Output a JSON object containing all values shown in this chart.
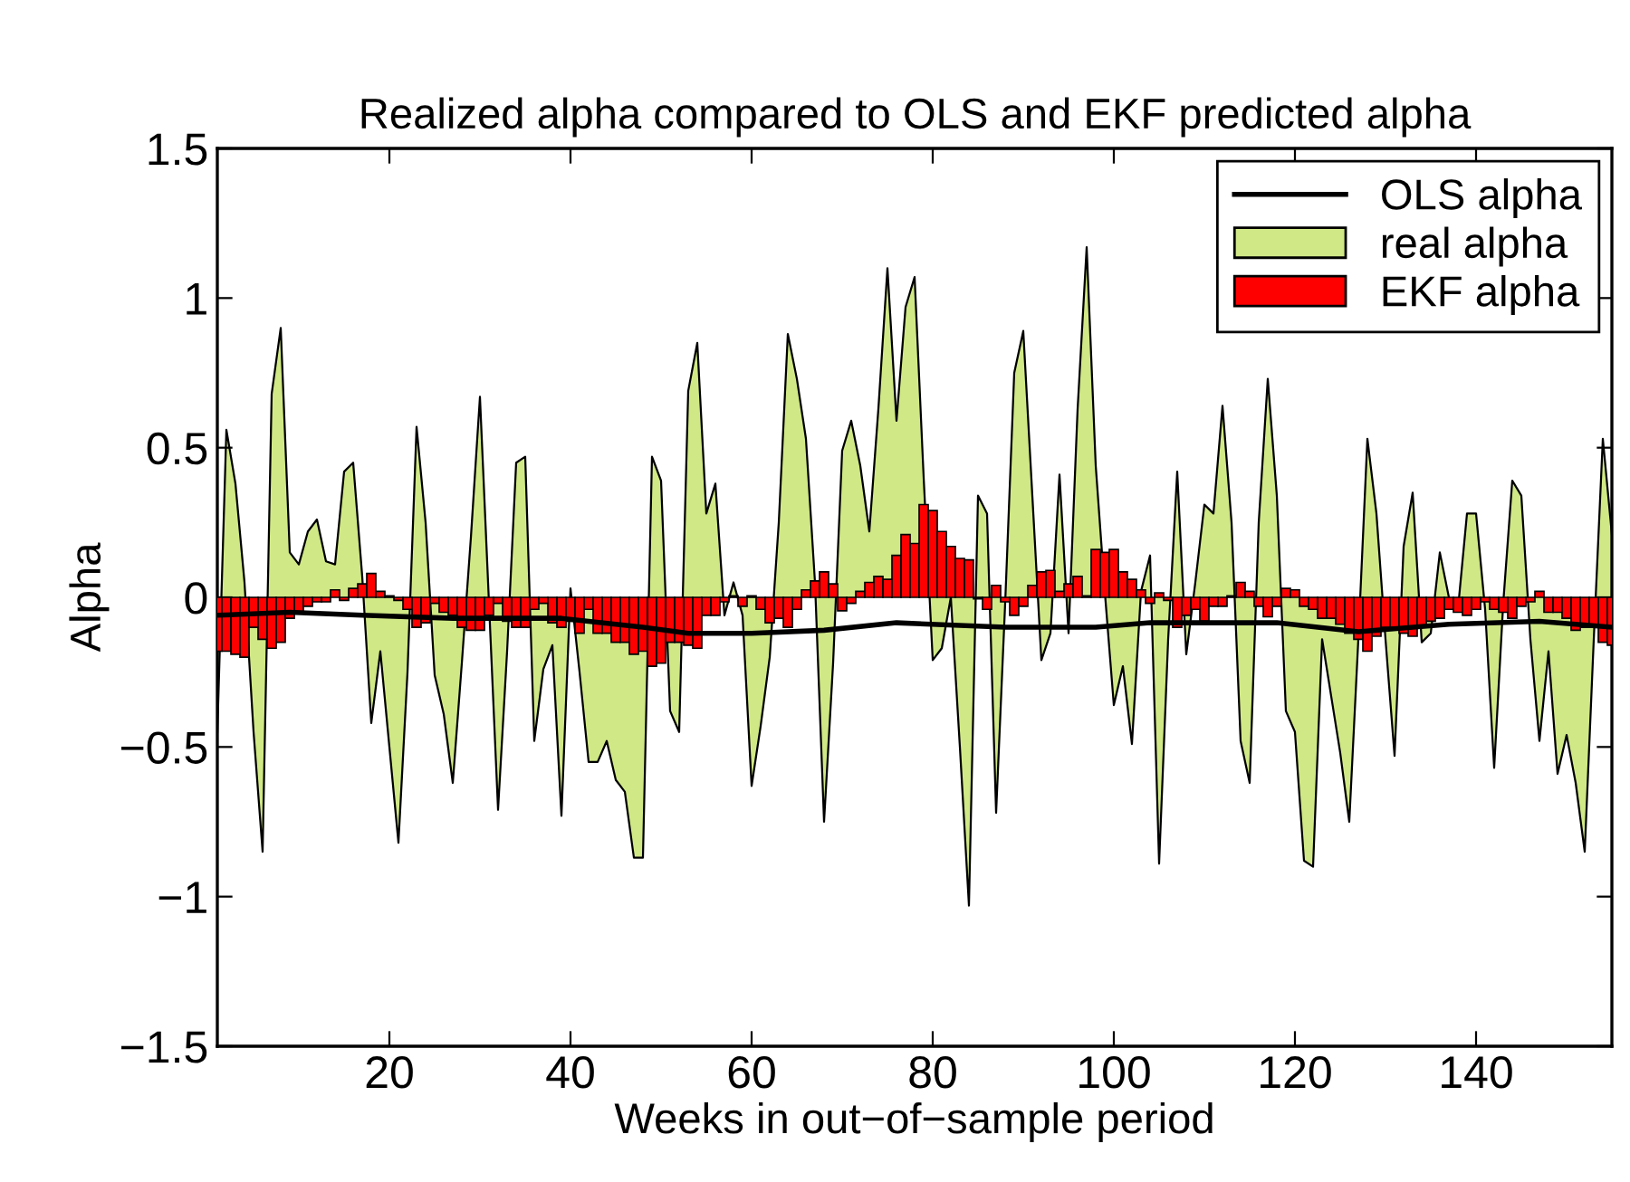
{
  "chart_data": {
    "type": "bar",
    "title": "Realized alpha compared to OLS and EKF predicted alpha",
    "xlabel": "Weeks in out−of−sample period",
    "ylabel": "Alpha",
    "x": [
      1,
      2,
      3,
      4,
      5,
      6,
      7,
      8,
      9,
      10,
      11,
      12,
      13,
      14,
      15,
      16,
      17,
      18,
      19,
      20,
      21,
      22,
      23,
      24,
      25,
      26,
      27,
      28,
      29,
      30,
      31,
      32,
      33,
      34,
      35,
      36,
      37,
      38,
      39,
      40,
      41,
      42,
      43,
      44,
      45,
      46,
      47,
      48,
      49,
      50,
      51,
      52,
      53,
      54,
      55,
      56,
      57,
      58,
      59,
      60,
      61,
      62,
      63,
      64,
      65,
      66,
      67,
      68,
      69,
      70,
      71,
      72,
      73,
      74,
      75,
      76,
      77,
      78,
      79,
      80,
      81,
      82,
      83,
      84,
      85,
      86,
      87,
      88,
      89,
      90,
      91,
      92,
      93,
      94,
      95,
      96,
      97,
      98,
      99,
      100,
      101,
      102,
      103,
      104,
      105,
      106,
      107,
      108,
      109,
      110,
      111,
      112,
      113,
      114,
      115,
      116,
      117,
      118,
      119,
      120,
      121,
      122,
      123,
      124,
      125,
      126,
      127,
      128,
      129,
      130,
      131,
      132,
      133,
      134,
      135,
      136,
      137,
      138,
      139,
      140,
      141,
      142,
      143,
      144,
      145,
      146,
      147,
      148,
      149,
      150,
      151,
      152,
      153,
      154,
      155
    ],
    "series": [
      {
        "name": "OLS alpha",
        "type": "line",
        "color": "#000000",
        "x": [
          1,
          9,
          17,
          27,
          39,
          48,
          53,
          60,
          68,
          76,
          88,
          98,
          104,
          118,
          127,
          137,
          147,
          155
        ],
        "values": [
          -0.06,
          -0.05,
          -0.06,
          -0.07,
          -0.07,
          -0.1,
          -0.12,
          -0.12,
          -0.11,
          -0.085,
          -0.1,
          -0.1,
          -0.085,
          -0.085,
          -0.115,
          -0.09,
          -0.08,
          -0.1
        ]
      },
      {
        "name": "real alpha",
        "type": "area",
        "color": "#d0e886",
        "values": [
          -0.45,
          0.56,
          0.38,
          0.05,
          -0.45,
          -0.85,
          0.68,
          0.9,
          0.15,
          0.11,
          0.22,
          0.26,
          0.12,
          0.11,
          0.42,
          0.45,
          0.07,
          -0.42,
          -0.18,
          -0.5,
          -0.82,
          -0.25,
          0.57,
          0.25,
          -0.26,
          -0.39,
          -0.62,
          -0.22,
          0.2,
          0.67,
          -0.02,
          -0.71,
          -0.18,
          0.45,
          0.47,
          -0.48,
          -0.24,
          -0.16,
          -0.73,
          0.03,
          -0.25,
          -0.55,
          -0.55,
          -0.48,
          -0.61,
          -0.65,
          -0.87,
          -0.87,
          0.47,
          0.39,
          -0.38,
          -0.45,
          0.69,
          0.85,
          0.28,
          0.38,
          -0.06,
          0.05,
          -0.06,
          -0.63,
          -0.43,
          -0.2,
          0.25,
          0.88,
          0.73,
          0.53,
          0.05,
          -0.75,
          -0.22,
          0.49,
          0.59,
          0.44,
          0.22,
          0.63,
          1.1,
          0.59,
          0.97,
          1.07,
          0.4,
          -0.21,
          -0.17,
          0.0,
          -0.5,
          -1.03,
          0.34,
          0.28,
          -0.72,
          -0.02,
          0.75,
          0.89,
          0.34,
          -0.21,
          -0.12,
          0.41,
          -0.12,
          0.63,
          1.17,
          0.44,
          0.02,
          -0.36,
          -0.23,
          -0.49,
          0.02,
          0.14,
          -0.89,
          -0.14,
          0.42,
          -0.19,
          0.05,
          0.31,
          0.28,
          0.64,
          0.25,
          -0.48,
          -0.62,
          0.25,
          0.73,
          0.34,
          -0.38,
          -0.45,
          -0.88,
          -0.9,
          -0.14,
          -0.33,
          -0.52,
          -0.75,
          -0.14,
          0.53,
          0.28,
          -0.14,
          -0.53,
          0.17,
          0.35,
          -0.15,
          -0.12,
          0.15,
          0.0,
          -0.04,
          0.28,
          0.28,
          -0.04,
          -0.57,
          -0.02,
          0.39,
          0.34,
          -0.14,
          -0.48,
          -0.18,
          -0.59,
          -0.46,
          -0.62,
          -0.85,
          -0.14,
          0.53,
          0.21
        ]
      },
      {
        "name": "EKF alpha",
        "color": "#ff0000",
        "values": [
          -0.18,
          -0.18,
          -0.19,
          -0.2,
          -0.1,
          -0.14,
          -0.17,
          -0.15,
          -0.07,
          -0.05,
          -0.03,
          -0.015,
          -0.015,
          0.025,
          -0.01,
          0.03,
          0.045,
          0.08,
          0.02,
          0.005,
          -0.01,
          -0.04,
          -0.1,
          -0.085,
          -0.02,
          -0.05,
          -0.06,
          -0.1,
          -0.11,
          -0.11,
          -0.06,
          -0.02,
          -0.08,
          -0.1,
          -0.1,
          -0.04,
          -0.02,
          -0.085,
          -0.1,
          -0.08,
          -0.12,
          -0.04,
          -0.12,
          -0.12,
          -0.15,
          -0.15,
          -0.19,
          -0.18,
          -0.23,
          -0.22,
          -0.15,
          -0.15,
          -0.16,
          -0.17,
          -0.06,
          -0.06,
          -0.015,
          0.005,
          -0.03,
          0.005,
          -0.04,
          -0.085,
          -0.07,
          -0.1,
          -0.04,
          0.025,
          0.055,
          0.085,
          0.045,
          -0.045,
          -0.02,
          0.02,
          0.05,
          0.07,
          0.06,
          0.14,
          0.21,
          0.18,
          0.31,
          0.29,
          0.22,
          0.17,
          0.13,
          0.125,
          -0.005,
          -0.04,
          0.04,
          -0.015,
          -0.06,
          -0.03,
          0.04,
          0.085,
          0.09,
          0.02,
          0.045,
          0.07,
          0.005,
          0.16,
          0.15,
          0.16,
          0.085,
          0.06,
          0.025,
          -0.02,
          0.015,
          -0.01,
          -0.1,
          -0.06,
          -0.04,
          -0.08,
          -0.03,
          -0.03,
          0.005,
          0.05,
          0.02,
          -0.03,
          -0.065,
          -0.03,
          0.03,
          0.025,
          -0.03,
          -0.04,
          -0.07,
          -0.07,
          -0.09,
          -0.12,
          -0.14,
          -0.18,
          -0.13,
          -0.1,
          -0.1,
          -0.12,
          -0.13,
          -0.1,
          -0.08,
          -0.07,
          -0.04,
          -0.05,
          -0.06,
          -0.04,
          -0.015,
          -0.04,
          -0.05,
          -0.07,
          -0.03,
          -0.015,
          0.02,
          -0.05,
          -0.05,
          -0.07,
          -0.11,
          -0.1,
          -0.1,
          -0.15,
          -0.16
        ]
      }
    ],
    "xlim": [
      1,
      155
    ],
    "xticks": [
      20,
      40,
      60,
      80,
      100,
      120,
      140
    ],
    "ylim": [
      -1.5,
      1.5
    ],
    "yticks": [
      {
        "value": -1.5,
        "label": "−1.5"
      },
      {
        "value": -1,
        "label": "−1"
      },
      {
        "value": -0.5,
        "label": "−0.5"
      },
      0,
      0.5,
      1,
      1.5
    ],
    "legend": "top right",
    "grid": false
  }
}
